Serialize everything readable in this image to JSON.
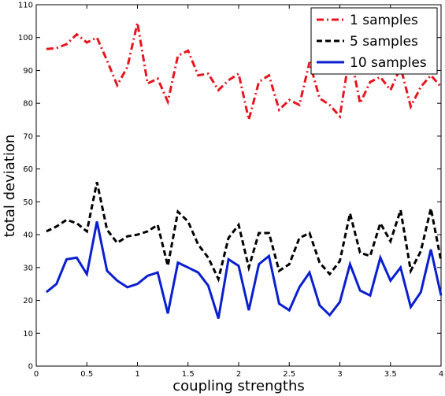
{
  "chart_data": {
    "type": "line",
    "title": "",
    "xlabel": "coupling strengths",
    "ylabel": "total deviation",
    "xlim": [
      0,
      4
    ],
    "ylim": [
      0,
      110
    ],
    "xticks": [
      0,
      0.5,
      1,
      1.5,
      2,
      2.5,
      3,
      3.5,
      4
    ],
    "xtick_labels": [
      "0",
      "0.5",
      "1",
      "1.5",
      "2",
      "2.5",
      "3",
      "3.5",
      "4"
    ],
    "yticks": [
      0,
      10,
      20,
      30,
      40,
      50,
      60,
      70,
      80,
      90,
      100,
      110
    ],
    "ytick_labels": [
      "0",
      "10",
      "20",
      "30",
      "40",
      "50",
      "60",
      "70",
      "80",
      "90",
      "100",
      "110"
    ],
    "grid": false,
    "legend_position": "top-right",
    "x": [
      0.1,
      0.2,
      0.3,
      0.4,
      0.5,
      0.6,
      0.7,
      0.8,
      0.9,
      1.0,
      1.1,
      1.2,
      1.3,
      1.4,
      1.5,
      1.6,
      1.7,
      1.8,
      1.9,
      2.0,
      2.1,
      2.2,
      2.3,
      2.4,
      2.5,
      2.6,
      2.7,
      2.8,
      2.9,
      3.0,
      3.1,
      3.2,
      3.3,
      3.4,
      3.5,
      3.6,
      3.7,
      3.8,
      3.9,
      4.0
    ],
    "series": [
      {
        "name": "1 samples",
        "color": "#e8141f",
        "style": "dashdot",
        "values": [
          96.5,
          96.8,
          98.0,
          101.0,
          98.5,
          100.0,
          93.0,
          85.5,
          91.0,
          104.5,
          86.0,
          87.5,
          80.5,
          94.5,
          96.0,
          88.5,
          89.0,
          84.0,
          87.0,
          89.0,
          75.0,
          86.5,
          88.5,
          78.0,
          81.0,
          79.5,
          92.5,
          81.5,
          79.5,
          76.0,
          95.5,
          80.0,
          86.5,
          88.0,
          84.0,
          91.0,
          79.0,
          85.0,
          88.5,
          85.0
        ]
      },
      {
        "name": "5 samples",
        "color": "#000000",
        "style": "dashed",
        "values": [
          41.0,
          42.5,
          44.5,
          43.5,
          41.0,
          56.0,
          41.5,
          37.5,
          39.5,
          40.0,
          41.0,
          43.0,
          30.5,
          47.0,
          44.0,
          37.0,
          33.0,
          26.5,
          39.0,
          43.0,
          30.0,
          40.5,
          40.5,
          29.0,
          31.0,
          39.0,
          40.5,
          31.5,
          28.0,
          32.0,
          46.5,
          34.5,
          33.5,
          43.5,
          38.0,
          47.5,
          29.0,
          35.0,
          48.0,
          32.0
        ]
      },
      {
        "name": "10 samples",
        "color": "#0a1fd0",
        "style": "solid",
        "values": [
          22.5,
          25.0,
          32.5,
          33.0,
          28.0,
          44.0,
          29.0,
          26.0,
          24.0,
          25.0,
          27.5,
          28.5,
          16.0,
          31.5,
          30.0,
          28.5,
          24.5,
          14.5,
          32.5,
          30.5,
          17.0,
          31.0,
          33.5,
          19.0,
          17.0,
          24.0,
          28.5,
          18.5,
          15.5,
          19.5,
          31.0,
          23.0,
          21.5,
          33.0,
          26.0,
          30.0,
          18.0,
          22.5,
          35.5,
          21.5
        ]
      }
    ]
  }
}
